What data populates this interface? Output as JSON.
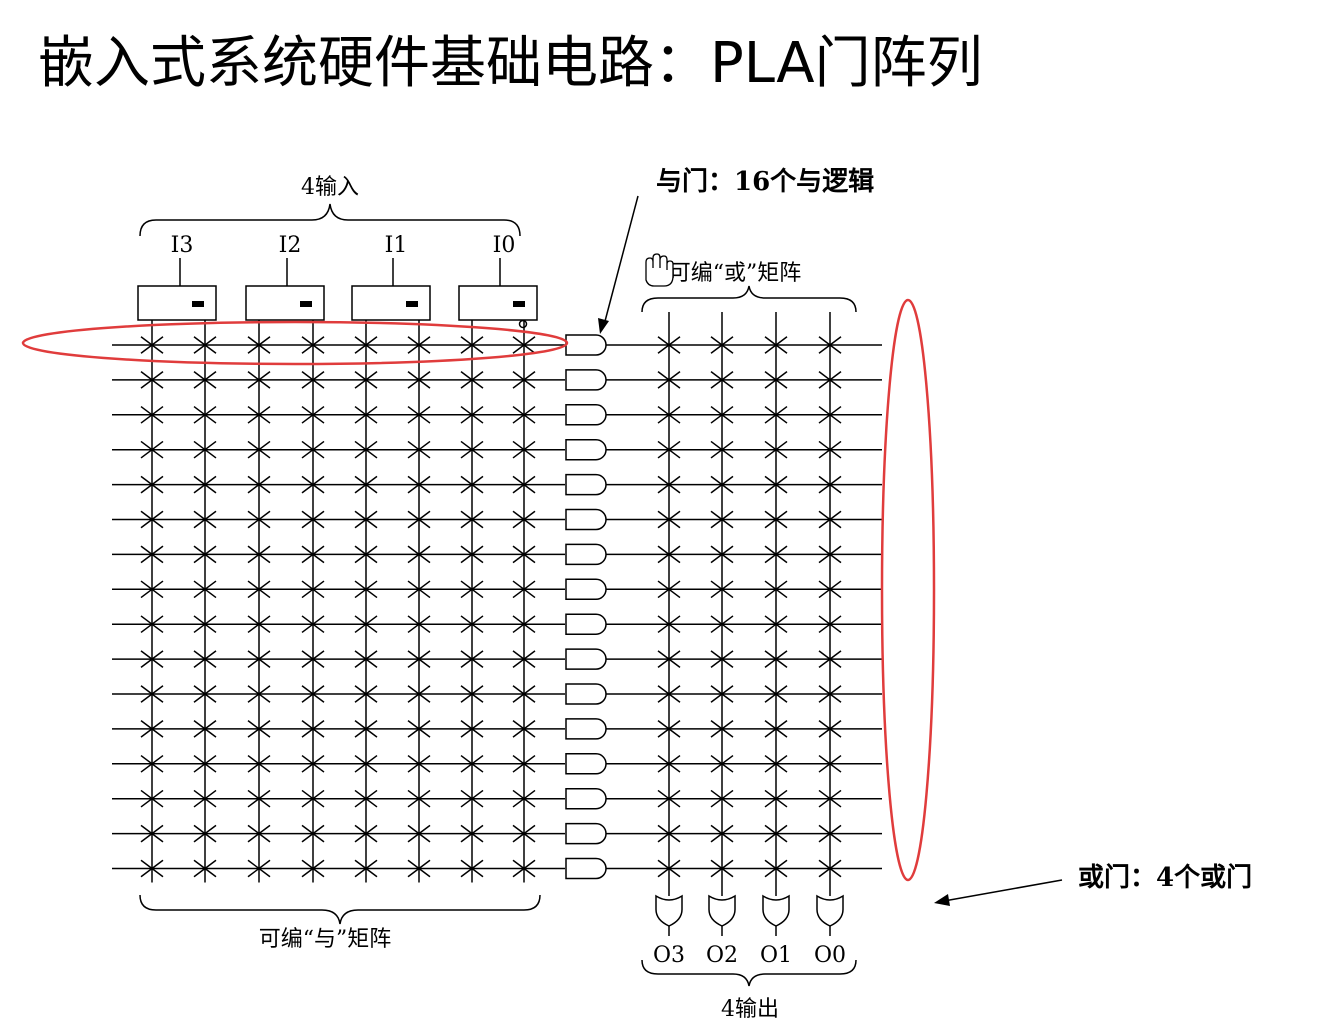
{
  "slide": {
    "title": "嵌入式系统硬件基础电路：PLA门阵列"
  },
  "diagram": {
    "input_group_label": "4输入",
    "inputs": [
      "I3",
      "I2",
      "I1",
      "I0"
    ],
    "and_matrix_label": "可编“与”矩阵",
    "or_matrix_label": "可编“或”矩阵",
    "outputs": [
      "O3",
      "O2",
      "O1",
      "O0"
    ],
    "output_group_label": "4输出",
    "and_gate_count": 16,
    "or_gate_count": 4,
    "annotations": {
      "and_gates": "与门：16个与逻辑",
      "or_gates": "或门：4个或门"
    },
    "highlight_color": "#e03c3c",
    "line_color": "#000000"
  }
}
